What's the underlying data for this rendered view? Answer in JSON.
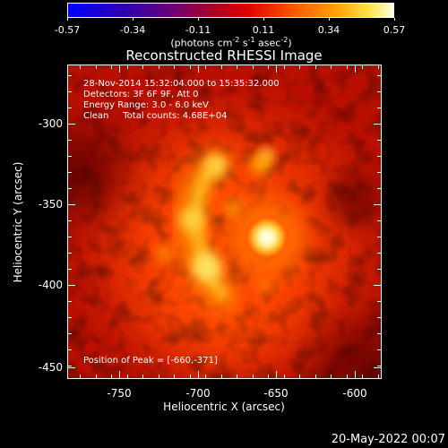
{
  "colorbar": {
    "ticks": [
      "-0.57",
      "-0.34",
      "-0.11",
      "0.11",
      "0.34",
      "0.57"
    ],
    "units_main": "(photons cm",
    "units_exp1": "-2",
    "units_mid": " s",
    "units_exp2": "-1",
    "units_mid2": " asec",
    "units_exp3": "-2",
    "units_end": ")"
  },
  "title": "Reconstructed RHESSI Image",
  "info": {
    "line1": "28-Nov-2014 15:32:04.000 to 15:35:32.000",
    "line2": "Detectors: 3F 6F 9F, Att 0",
    "line3": "Energy Range: 3.0 - 6.0 keV",
    "line4": "Clean     Total counts: 4.68E+04",
    "peak": "Position of Peak = [-660,-371]"
  },
  "axes": {
    "xlabel": "Heliocentric X (arcsec)",
    "ylabel": "Heliocentric Y (arcsec)",
    "xticks": [
      "-750",
      "-700",
      "-650",
      "-600"
    ],
    "yticks": [
      "-300",
      "-350",
      "-400",
      "-450"
    ]
  },
  "date": "20-May-2022 00:07"
}
